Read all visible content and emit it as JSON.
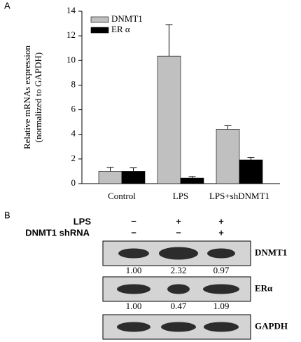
{
  "panel_labels": [
    "A",
    "B"
  ],
  "chart_data": {
    "type": "bar",
    "ylabel": [
      "Relative mRNAs expression",
      "(normalized to GAPDH)"
    ],
    "categories": [
      "Control",
      "LPS",
      "LPS+shDNMT1"
    ],
    "series": [
      {
        "name": "DNMT1",
        "color": "#c0c0c0",
        "values": [
          1.0,
          10.35,
          4.42
        ],
        "errors": [
          0.32,
          2.55,
          0.28
        ]
      },
      {
        "name": "ER α",
        "color": "#000000",
        "values": [
          1.0,
          0.45,
          1.93
        ],
        "errors": [
          0.28,
          0.12,
          0.2
        ]
      }
    ],
    "ylim": [
      0,
      14
    ],
    "yticks": [
      0,
      2,
      4,
      6,
      8,
      10,
      12,
      14
    ],
    "legend": "upper left"
  },
  "blot": {
    "treatments": [
      {
        "label": "LPS",
        "signs": [
          "−",
          "+",
          "+"
        ]
      },
      {
        "label": "DNMT1 shRNA",
        "signs": [
          "−",
          "−",
          "+"
        ]
      }
    ],
    "rows": [
      {
        "label": "DNMT1",
        "quant": [
          "1.00",
          "2.32",
          "0.97"
        ]
      },
      {
        "label": "ERα",
        "quant": [
          "1.00",
          "0.47",
          "1.09"
        ]
      },
      {
        "label": "GAPDH"
      }
    ]
  }
}
